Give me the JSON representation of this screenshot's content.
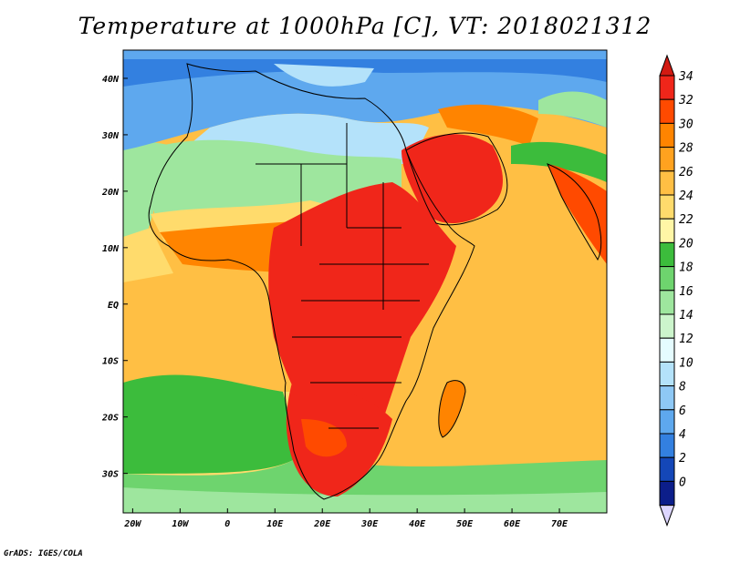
{
  "title": "Temperature at 1000hPa [C], VT: 2018021312",
  "credit": "GrADS: IGES/COLA",
  "map": {
    "lon_range": [
      -22,
      80
    ],
    "lat_range": [
      -37,
      45
    ],
    "x_ticks": [
      {
        "value": -20,
        "label": "20W"
      },
      {
        "value": -10,
        "label": "10W"
      },
      {
        "value": 0,
        "label": "0"
      },
      {
        "value": 10,
        "label": "10E"
      },
      {
        "value": 20,
        "label": "20E"
      },
      {
        "value": 30,
        "label": "30E"
      },
      {
        "value": 40,
        "label": "40E"
      },
      {
        "value": 50,
        "label": "50E"
      },
      {
        "value": 60,
        "label": "60E"
      },
      {
        "value": 70,
        "label": "70E"
      }
    ],
    "y_ticks": [
      {
        "value": 40,
        "label": "40N"
      },
      {
        "value": 30,
        "label": "30N"
      },
      {
        "value": 20,
        "label": "20N"
      },
      {
        "value": 10,
        "label": "10N"
      },
      {
        "value": 0,
        "label": "EQ"
      },
      {
        "value": -10,
        "label": "10S"
      },
      {
        "value": -20,
        "label": "20S"
      },
      {
        "value": -30,
        "label": "30S"
      }
    ]
  },
  "colorbar": {
    "labels": [
      "34",
      "32",
      "30",
      "28",
      "26",
      "24",
      "22",
      "20",
      "18",
      "16",
      "14",
      "12",
      "10",
      "8",
      "6",
      "4",
      "2",
      "0"
    ],
    "colors": [
      "#f0261a",
      "#ff4a00",
      "#ff8400",
      "#ffa21f",
      "#ffbf44",
      "#ffdb6c",
      "#fff6a6",
      "#3cbc3c",
      "#6ed46e",
      "#9ee69e",
      "#ccf5cc",
      "#e5fcff",
      "#b4e2fa",
      "#8ec8f5",
      "#5ea8ee",
      "#3380e0",
      "#1447b8",
      "#0c1e8a"
    ],
    "top_arrow_color": "#d21a12",
    "bottom_arrow_color": "#ddd6ff"
  }
}
